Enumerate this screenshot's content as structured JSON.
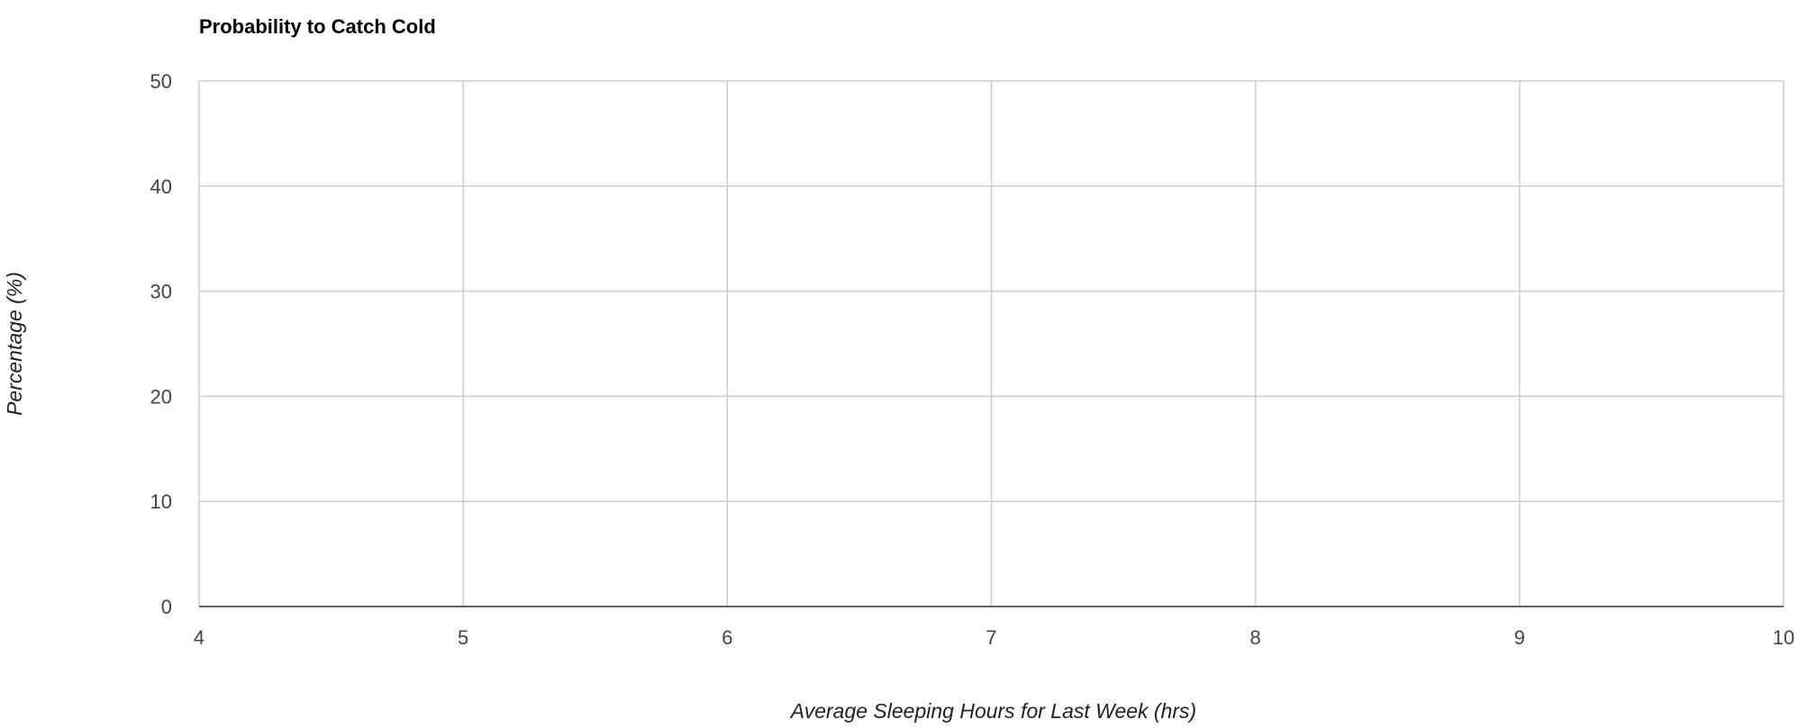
{
  "chart_data": {
    "type": "scatter",
    "title": "Probability to Catch Cold",
    "xlabel": "Average Sleeping Hours for Last Week (hrs)",
    "ylabel": "Percentage (%)",
    "xlim": [
      4,
      10
    ],
    "ylim": [
      0,
      50
    ],
    "x_ticks": [
      4,
      5,
      6,
      7,
      8,
      9,
      10
    ],
    "y_ticks": [
      0,
      10,
      20,
      30,
      40,
      50
    ],
    "grid": true,
    "legend": "none",
    "series": []
  },
  "colors": {
    "gridline": "#cccccc",
    "baseline": "#333333",
    "tick_text": "#444444",
    "title_text": "#000000"
  }
}
